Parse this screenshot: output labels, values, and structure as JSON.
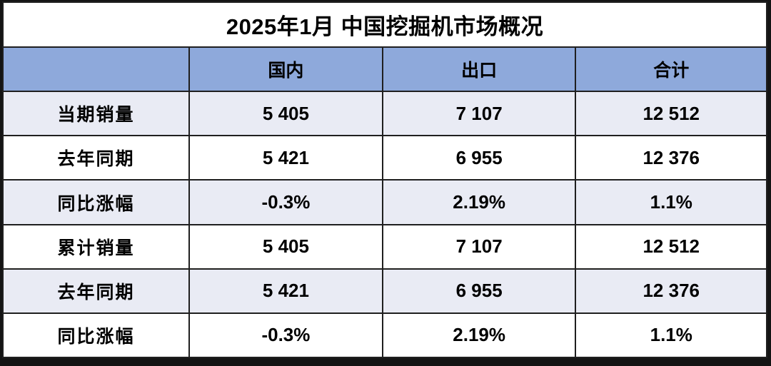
{
  "title": "2025年1月 中国挖掘机市场概况",
  "table": {
    "columns": [
      "",
      "国内",
      "出口",
      "合计"
    ],
    "rows": [
      {
        "label": "当期销量",
        "values": [
          "5 405",
          "7 107",
          "12 512"
        ]
      },
      {
        "label": "去年同期",
        "values": [
          "5 421",
          "6 955",
          "12 376"
        ]
      },
      {
        "label": "同比涨幅",
        "values": [
          "-0.3%",
          "2.19%",
          "1.1%"
        ]
      },
      {
        "label": "累计销量",
        "values": [
          "5 405",
          "7 107",
          "12 512"
        ]
      },
      {
        "label": "去年同期",
        "values": [
          "5 421",
          "6 955",
          "12 376"
        ]
      },
      {
        "label": "同比涨幅",
        "values": [
          "-0.3%",
          "2.19%",
          "1.1%"
        ]
      }
    ]
  },
  "chart_data": {
    "type": "table",
    "title": "2025年1月 中国挖掘机市场概况",
    "columns": [
      "",
      "国内",
      "出口",
      "合计"
    ],
    "rows": [
      [
        "当期销量",
        "5 405",
        "7 107",
        "12 512"
      ],
      [
        "去年同期",
        "5 421",
        "6 955",
        "12 376"
      ],
      [
        "同比涨幅",
        "-0.3%",
        "2.19%",
        "1.1%"
      ],
      [
        "累计销量",
        "5 405",
        "7 107",
        "12 512"
      ],
      [
        "去年同期",
        "5 421",
        "6 955",
        "12 376"
      ],
      [
        "同比涨幅",
        "-0.3%",
        "2.19%",
        "1.1%"
      ]
    ],
    "notes": {
      "current_month_sales": {
        "domestic": 5405,
        "export": 7107,
        "total": 12512
      },
      "last_year_same_month": {
        "domestic": 5421,
        "export": 6955,
        "total": 12376
      },
      "yoy_change_month_pct": {
        "domestic": -0.3,
        "export": 2.19,
        "total": 1.1
      },
      "cumulative_sales": {
        "domestic": 5405,
        "export": 7107,
        "total": 12512
      },
      "last_year_cumulative": {
        "domestic": 5421,
        "export": 6955,
        "total": 12376
      },
      "yoy_change_cum_pct": {
        "domestic": -0.3,
        "export": 2.19,
        "total": 1.1
      }
    }
  },
  "colors": {
    "header_bg": "#8EA9DB",
    "band_row_bg": "#E9EBF4",
    "plain_row_bg": "#FFFFFF",
    "border": "#1F1F1F",
    "text": "#000000"
  }
}
